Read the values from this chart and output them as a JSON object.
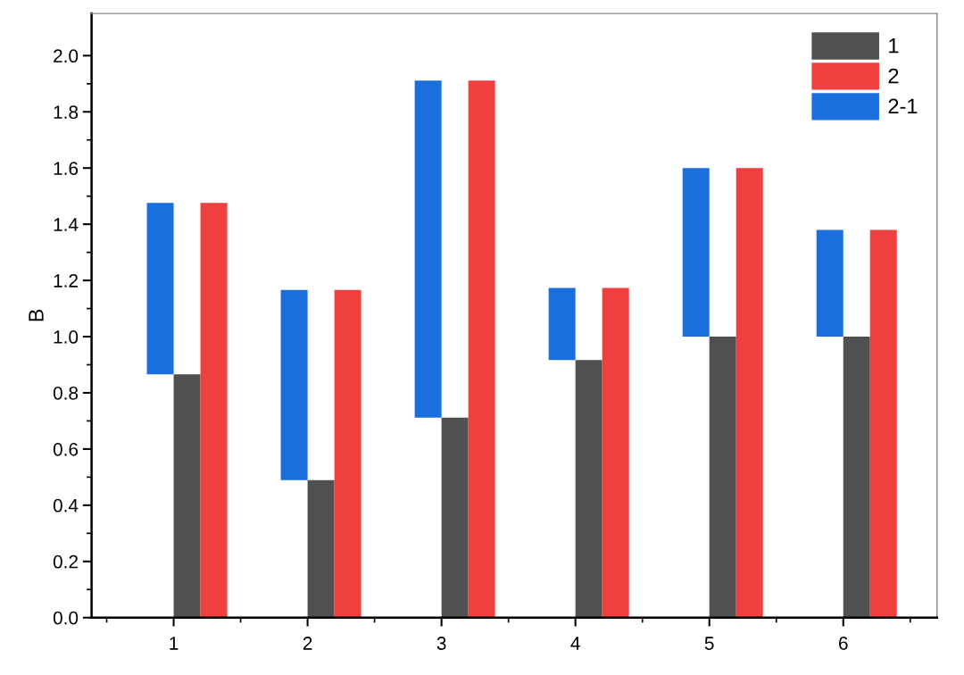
{
  "chart_data": {
    "type": "bar",
    "ylabel": "B",
    "categories": [
      "1",
      "2",
      "3",
      "4",
      "5",
      "6"
    ],
    "series": [
      {
        "name": "1",
        "color": "#505050",
        "values": [
          0.866,
          0.489,
          0.712,
          0.917,
          1.0,
          1.0
        ]
      },
      {
        "name": "2",
        "color": "#ef3f3f",
        "values": [
          1.476,
          1.166,
          1.911,
          1.173,
          1.6,
          1.38
        ]
      },
      {
        "name": "2-1",
        "color": "#1a6fdc",
        "values": [
          0.61,
          0.677,
          1.199,
          0.256,
          0.6,
          0.38
        ],
        "base": [
          0.866,
          0.489,
          0.712,
          0.917,
          1.0,
          1.0
        ]
      }
    ],
    "ylim": [
      0,
      2.15
    ],
    "yticks": [
      {
        "value": 0,
        "label": "0.0"
      },
      {
        "value": 0.2,
        "label": "0.2"
      },
      {
        "value": 0.4,
        "label": "0.4"
      },
      {
        "value": 0.6,
        "label": "0.6"
      },
      {
        "value": 0.8,
        "label": "0.8"
      },
      {
        "value": 1.0,
        "label": "1.0"
      },
      {
        "value": 1.2,
        "label": "1.2"
      },
      {
        "value": 1.4,
        "label": "1.4"
      },
      {
        "value": 1.6,
        "label": "1.6"
      },
      {
        "value": 1.8,
        "label": "1.8"
      },
      {
        "value": 2.0,
        "label": "2.0"
      }
    ],
    "grid": false,
    "legend": "top right"
  }
}
